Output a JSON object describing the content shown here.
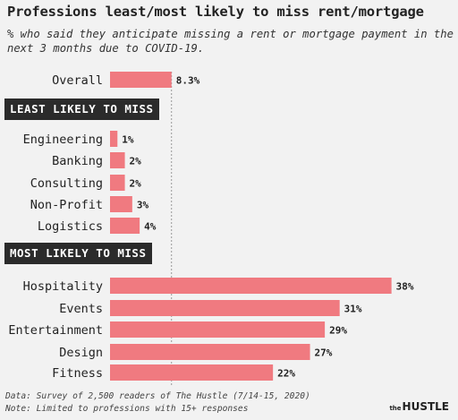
{
  "header": {
    "title": "Professions least/most likely to miss rent/mortgage",
    "subtitle": "% who said they anticipate missing a rent or mortgage payment in the next 3 months due to COVID-19."
  },
  "sections": {
    "least": "LEAST LIKELY TO MISS",
    "most": "MOST LIKELY TO MISS"
  },
  "footer": {
    "line1": "Data: Survey of 2,500 readers of The Hustle (7/14-15, 2020)",
    "line2": "Note: Limited to professions with 15+ responses"
  },
  "brand": {
    "prefix": "the",
    "name": "HUSTLE"
  },
  "colors": {
    "bar": "#f07a80",
    "background": "#f2f2f2",
    "banner": "#2b2b2b",
    "reference_line": "#999999"
  },
  "chart_data": {
    "type": "bar",
    "orientation": "horizontal",
    "unit": "%",
    "reference_line": "Overall",
    "groups": [
      {
        "name": "",
        "categories": [
          "Overall"
        ],
        "values": [
          8.3
        ],
        "labels": [
          "8.3%"
        ]
      },
      {
        "name": "LEAST LIKELY TO MISS",
        "categories": [
          "Engineering",
          "Banking",
          "Consulting",
          "Non-Profit",
          "Logistics"
        ],
        "values": [
          1,
          2,
          2,
          3,
          4
        ],
        "labels": [
          "1%",
          "2%",
          "2%",
          "3%",
          "4%"
        ]
      },
      {
        "name": "MOST LIKELY TO MISS",
        "categories": [
          "Hospitality",
          "Events",
          "Entertainment",
          "Design",
          "Fitness"
        ],
        "values": [
          38,
          31,
          29,
          27,
          22
        ],
        "labels": [
          "38%",
          "31%",
          "29%",
          "27%",
          "22%"
        ]
      }
    ]
  }
}
